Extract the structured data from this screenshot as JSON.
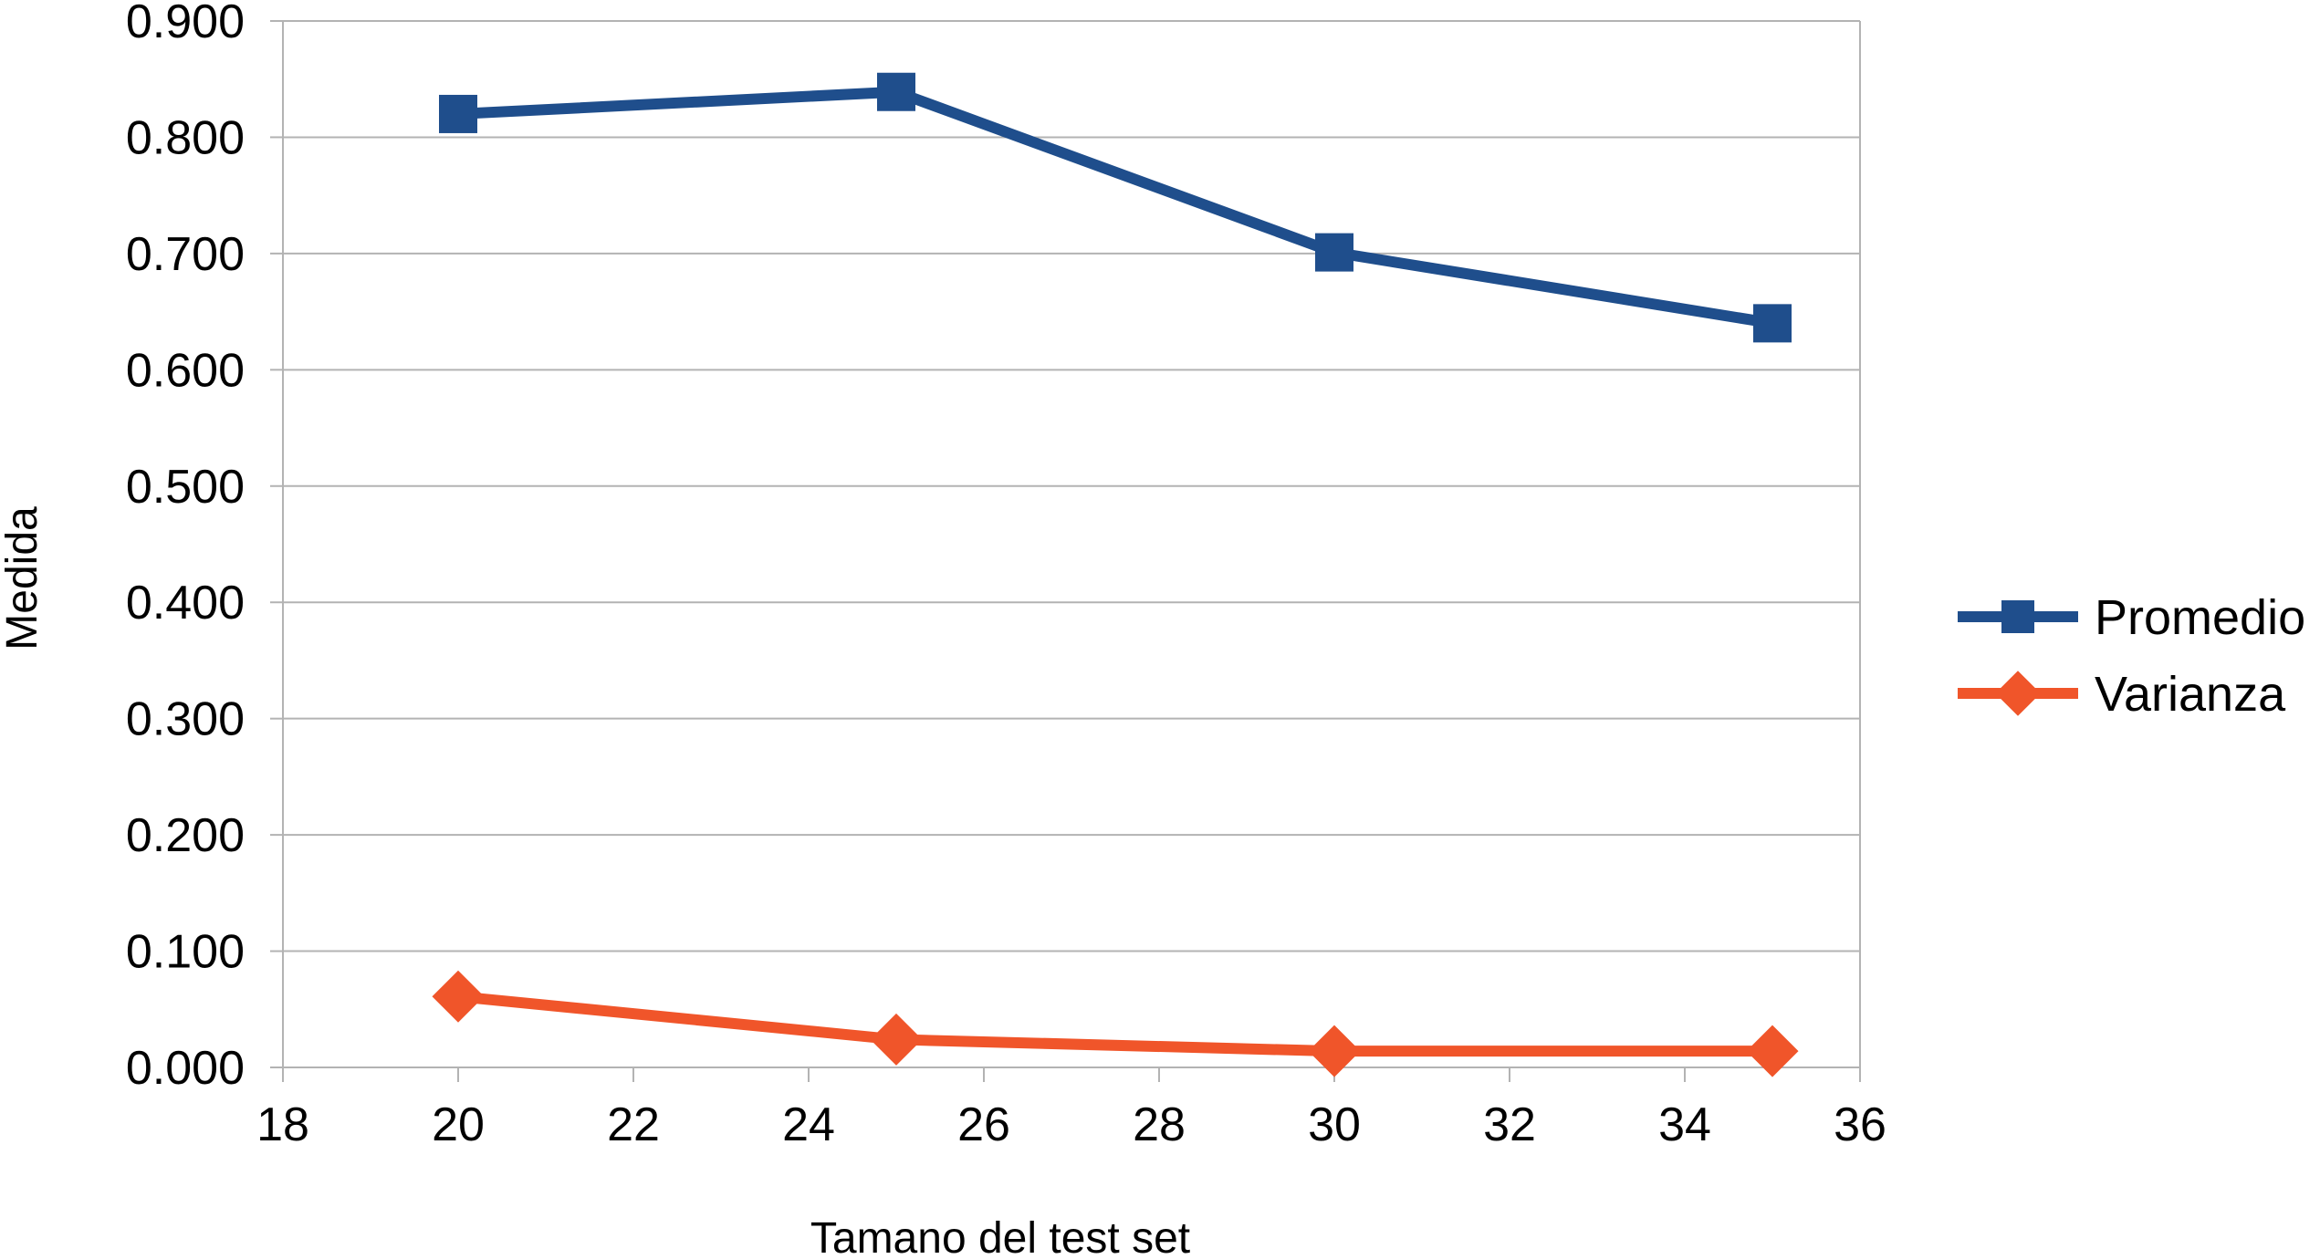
{
  "chart_data": {
    "type": "line",
    "title": "",
    "xlabel": "Tamano del test set",
    "ylabel": "Medida",
    "xlim": [
      18,
      36
    ],
    "ylim": [
      0,
      0.9
    ],
    "x_ticks": [
      "18",
      "20",
      "22",
      "24",
      "26",
      "28",
      "30",
      "32",
      "34",
      "36"
    ],
    "y_ticks": [
      "0.000",
      "0.100",
      "0.200",
      "0.300",
      "0.400",
      "0.500",
      "0.600",
      "0.700",
      "0.800",
      "0.900"
    ],
    "grid": true,
    "legend_position": "right",
    "x": [
      20,
      25,
      30,
      35
    ],
    "series": [
      {
        "name": "Promedio",
        "values": [
          0.82,
          0.839,
          0.701,
          0.64
        ],
        "color": "#1f4e8c",
        "marker": "square"
      },
      {
        "name": "Varianza",
        "values": [
          0.061,
          0.024,
          0.014,
          0.014
        ],
        "color": "#f0552a",
        "marker": "diamond"
      }
    ]
  }
}
